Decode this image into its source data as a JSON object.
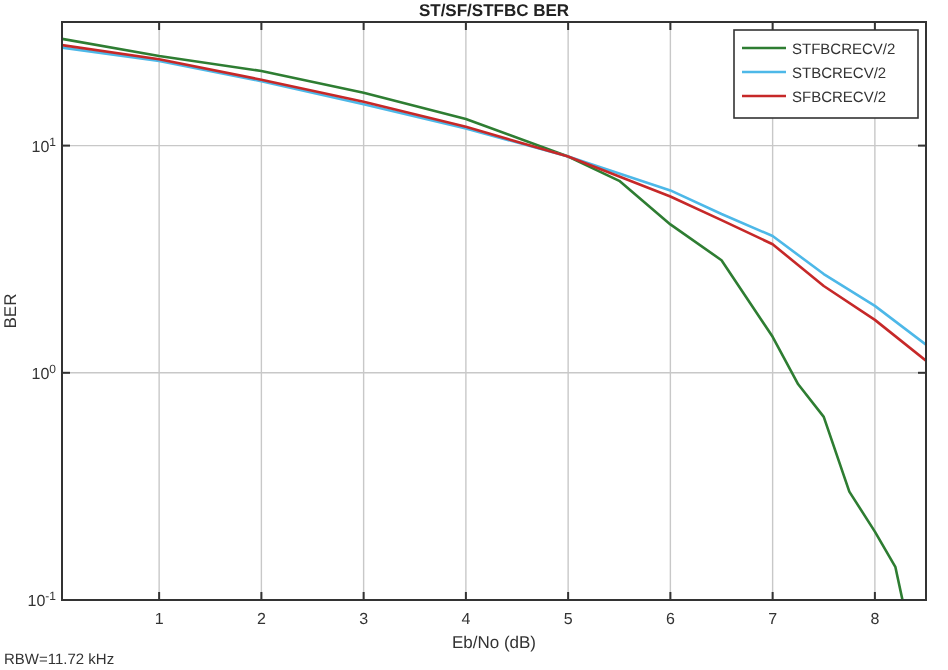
{
  "chart_data": {
    "type": "line",
    "title": "ST/SF/STFBC BER",
    "xlabel": "Eb/No (dB)",
    "ylabel": "BER",
    "annotations": [
      "RBW=11.72 kHz"
    ],
    "log": "y",
    "grid": true,
    "legend": "top right",
    "xlim": [
      0.05,
      8.5
    ],
    "xticks": [
      1,
      2,
      3,
      4,
      5,
      6,
      7,
      8
    ],
    "ylim": [
      0.1,
      35
    ],
    "yticks": [
      {
        "value": 0.1,
        "label": "10$^{-1}$"
      },
      {
        "value": 1,
        "label": "10$^{0}$"
      },
      {
        "value": 10,
        "label": "10$^{1}$"
      }
    ],
    "series": [
      {
        "name": "STFBCRECV/2",
        "color": "#2e7d32",
        "x": [
          0.05,
          1,
          2,
          3,
          4,
          5,
          5.5,
          6,
          6.5,
          7,
          7.25,
          7.5,
          7.75,
          8,
          8.2,
          8.27
        ],
        "values": [
          29.5,
          24.8,
          21.3,
          17.1,
          13.1,
          8.95,
          7.0,
          4.5,
          3.13,
          1.44,
          0.89,
          0.64,
          0.3,
          0.2,
          0.14,
          0.1
        ]
      },
      {
        "name": "STBCRECV/2",
        "color": "#4db8e8",
        "x": [
          0.05,
          1,
          2,
          3,
          4,
          5,
          6,
          6.5,
          7,
          7.5,
          8,
          8.5
        ],
        "values": [
          27,
          23.6,
          19.2,
          15.2,
          11.9,
          8.95,
          6.35,
          5.0,
          4.0,
          2.72,
          1.97,
          1.33
        ]
      },
      {
        "name": "SFBCRECV/2",
        "color": "#c62828",
        "x": [
          0.05,
          1,
          2,
          3,
          4,
          5,
          6,
          6.5,
          7,
          7.5,
          8,
          8.5
        ],
        "values": [
          27.7,
          24,
          19.5,
          15.6,
          12.1,
          8.95,
          5.97,
          4.7,
          3.68,
          2.41,
          1.71,
          1.13
        ]
      }
    ]
  }
}
